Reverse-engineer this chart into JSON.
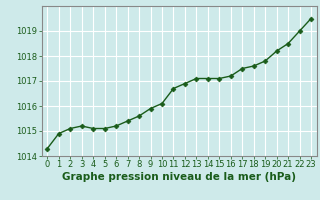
{
  "x": [
    0,
    1,
    2,
    3,
    4,
    5,
    6,
    7,
    8,
    9,
    10,
    11,
    12,
    13,
    14,
    15,
    16,
    17,
    18,
    19,
    20,
    21,
    22,
    23
  ],
  "y": [
    1014.3,
    1014.9,
    1015.1,
    1015.2,
    1015.1,
    1015.1,
    1015.2,
    1015.4,
    1015.6,
    1015.9,
    1016.1,
    1016.7,
    1016.9,
    1017.1,
    1017.1,
    1017.1,
    1017.2,
    1017.5,
    1017.6,
    1017.8,
    1018.2,
    1018.5,
    1019.0,
    1019.5
  ],
  "ylim": [
    1014,
    1020
  ],
  "yticks": [
    1014,
    1015,
    1016,
    1017,
    1018,
    1019
  ],
  "xlim": [
    -0.5,
    23.5
  ],
  "xticks": [
    0,
    1,
    2,
    3,
    4,
    5,
    6,
    7,
    8,
    9,
    10,
    11,
    12,
    13,
    14,
    15,
    16,
    17,
    18,
    19,
    20,
    21,
    22,
    23
  ],
  "line_color": "#1a5c1a",
  "marker": "D",
  "marker_size": 2.5,
  "line_width": 1.0,
  "bg_color": "#ceeaea",
  "grid_color": "#ffffff",
  "xlabel": "Graphe pression niveau de la mer (hPa)",
  "xlabel_color": "#1a5c1a",
  "xlabel_fontsize": 7.5,
  "tick_fontsize": 6.0,
  "tick_color": "#1a5c1a",
  "axis_color": "#888888"
}
